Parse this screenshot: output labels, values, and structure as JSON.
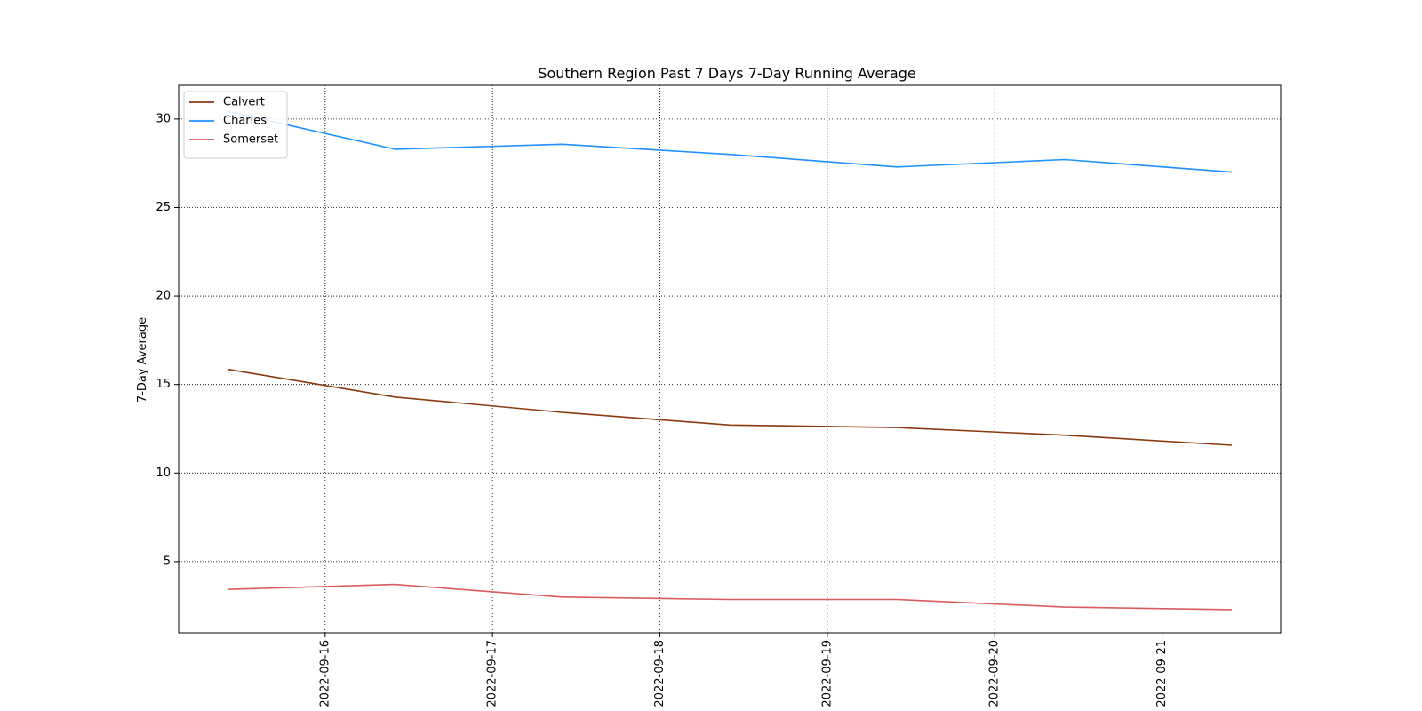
{
  "chart_data": {
    "type": "line",
    "title": "Southern Region Past 7 Days 7-Day Running Average",
    "xlabel": "",
    "ylabel": "7-Day Average",
    "x_type": "date",
    "x_ticks": [
      "2022-09-16",
      "2022-09-17",
      "2022-09-18",
      "2022-09-19",
      "2022-09-20",
      "2022-09-21"
    ],
    "x_range": [
      "2022-09-15T03:00",
      "2022-09-21T17:00"
    ],
    "y_ticks": [
      5,
      10,
      15,
      20,
      25,
      30
    ],
    "ylim": [
      0.98,
      31.9
    ],
    "grid": true,
    "legend_position": "top-left",
    "x": [
      "2022-09-15T10:00",
      "2022-09-16T10:00",
      "2022-09-17T10:00",
      "2022-09-18T10:00",
      "2022-09-19T10:00",
      "2022-09-20T10:00",
      "2022-09-21T10:00"
    ],
    "series": [
      {
        "name": "Calvert",
        "color": "#8b3a0f",
        "values": [
          15.86,
          14.29,
          13.43,
          12.71,
          12.57,
          12.14,
          11.57
        ]
      },
      {
        "name": "Charles",
        "color": "#1e90ff",
        "values": [
          30.43,
          28.29,
          28.57,
          28.0,
          27.29,
          27.71,
          27.0
        ]
      },
      {
        "name": "Somerset",
        "color": "#d95c5c",
        "values": [
          3.43,
          3.71,
          3.0,
          2.86,
          2.86,
          2.43,
          2.29
        ]
      }
    ]
  }
}
